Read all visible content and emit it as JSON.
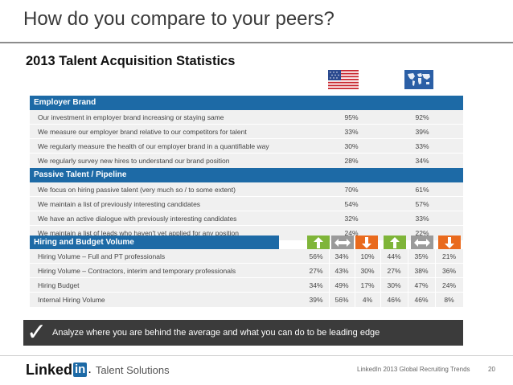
{
  "header": {
    "title": "How do you compare to your peers?",
    "subtitle": "2013 Talent Acquisition Statistics"
  },
  "flags": {
    "left": "us-flag-icon",
    "right": "world-map-icon"
  },
  "sections": [
    {
      "title": "Employer Brand",
      "rows": [
        {
          "label": "Our investment in employer brand increasing or staying same",
          "us": "95%",
          "global": "92%"
        },
        {
          "label": "We measure our employer brand relative to our competitors for talent",
          "us": "33%",
          "global": "39%"
        },
        {
          "label": "We regularly measure the health of our employer brand in a quantifiable way",
          "us": "30%",
          "global": "33%"
        },
        {
          "label": "We regularly survey new hires to understand our brand position",
          "us": "28%",
          "global": "34%"
        }
      ]
    },
    {
      "title": "Passive Talent / Pipeline",
      "rows": [
        {
          "label": "We focus on hiring passive talent (very much so / to some extent)",
          "us": "70%",
          "global": "61%"
        },
        {
          "label": "We maintain a list of previously interesting candidates",
          "us": "54%",
          "global": "57%"
        },
        {
          "label": "We have an active dialogue with previously interesting candidates",
          "us": "32%",
          "global": "33%"
        },
        {
          "label": "We maintain a list of leads who haven't yet applied for any position",
          "us": "24%",
          "global": "22%"
        }
      ]
    },
    {
      "title": "Hiring and Budget Volume",
      "arrows": [
        "up",
        "flat",
        "down",
        "up",
        "flat",
        "down"
      ],
      "rows": [
        {
          "label": "Hiring Volume – Full and PT professionals",
          "values": [
            "56%",
            "34%",
            "10%",
            "44%",
            "35%",
            "21%"
          ]
        },
        {
          "label": "Hiring Volume – Contractors, interim and temporary professionals",
          "values": [
            "27%",
            "43%",
            "30%",
            "27%",
            "38%",
            "36%"
          ]
        },
        {
          "label": "Hiring Budget",
          "values": [
            "34%",
            "49%",
            "17%",
            "30%",
            "47%",
            "24%"
          ]
        },
        {
          "label": "Internal Hiring Volume",
          "values": [
            "39%",
            "56%",
            "4%",
            "46%",
            "46%",
            "8%"
          ]
        }
      ]
    }
  ],
  "banner": {
    "icon": "checkmark-icon",
    "text": "Analyze where you are behind the average and what you can do to be leading edge"
  },
  "footer": {
    "logo_linked": "Linked",
    "logo_in": "in",
    "logo_dot": ".",
    "product": "Talent Solutions",
    "source": "LinkedIn 2013 Global Recruiting Trends",
    "page_number": "20"
  },
  "colors": {
    "section_bar": "#1d6aa6",
    "row_bg": "#f0f0f0",
    "arrow_up": "#7fb539",
    "arrow_flat": "#9a9a9a",
    "arrow_down": "#e96a1d",
    "banner_bg": "#3b3b3b"
  }
}
